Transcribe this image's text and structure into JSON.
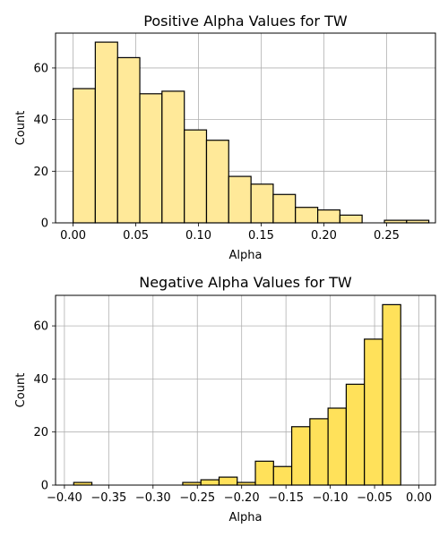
{
  "chart_data": [
    {
      "type": "bar",
      "title": "Positive Alpha Values for TW",
      "xlabel": "Alpha",
      "ylabel": "Count",
      "xlim": [
        -0.014,
        0.289
      ],
      "ylim": [
        0,
        73.5
      ],
      "grid": true,
      "bar_color": "#FFE999",
      "edge_color": "#000000",
      "xticks": [
        {
          "value": 0.0,
          "label": "0.00"
        },
        {
          "value": 0.05,
          "label": "0.05"
        },
        {
          "value": 0.1,
          "label": "0.10"
        },
        {
          "value": 0.15,
          "label": "0.15"
        },
        {
          "value": 0.2,
          "label": "0.20"
        },
        {
          "value": 0.25,
          "label": "0.25"
        }
      ],
      "yticks": [
        {
          "value": 0,
          "label": "0"
        },
        {
          "value": 20,
          "label": "20"
        },
        {
          "value": 40,
          "label": "40"
        },
        {
          "value": 60,
          "label": "60"
        }
      ],
      "bins": [
        {
          "x0": 0.0,
          "x1": 0.0177,
          "count": 52
        },
        {
          "x0": 0.0177,
          "x1": 0.0355,
          "count": 70
        },
        {
          "x0": 0.0355,
          "x1": 0.0532,
          "count": 64
        },
        {
          "x0": 0.0532,
          "x1": 0.0709,
          "count": 50
        },
        {
          "x0": 0.0709,
          "x1": 0.0887,
          "count": 51
        },
        {
          "x0": 0.0887,
          "x1": 0.1064,
          "count": 36
        },
        {
          "x0": 0.1064,
          "x1": 0.1241,
          "count": 32
        },
        {
          "x0": 0.1241,
          "x1": 0.1419,
          "count": 18
        },
        {
          "x0": 0.1419,
          "x1": 0.1596,
          "count": 15
        },
        {
          "x0": 0.1596,
          "x1": 0.1773,
          "count": 11
        },
        {
          "x0": 0.1773,
          "x1": 0.1951,
          "count": 6
        },
        {
          "x0": 0.1951,
          "x1": 0.2128,
          "count": 5
        },
        {
          "x0": 0.2128,
          "x1": 0.2305,
          "count": 3
        },
        {
          "x0": 0.2305,
          "x1": 0.2483,
          "count": 0
        },
        {
          "x0": 0.2483,
          "x1": 0.266,
          "count": 1
        },
        {
          "x0": 0.266,
          "x1": 0.2837,
          "count": 1
        }
      ]
    },
    {
      "type": "bar",
      "title": "Negative Alpha Values for TW",
      "xlabel": "Alpha",
      "ylabel": "Count",
      "xlim": [
        -0.41,
        0.0187
      ],
      "ylim": [
        0,
        71.5
      ],
      "grid": true,
      "bar_color": "#FFE15A",
      "edge_color": "#000000",
      "xticks": [
        {
          "value": -0.4,
          "label": "−0.40"
        },
        {
          "value": -0.35,
          "label": "−0.35"
        },
        {
          "value": -0.3,
          "label": "−0.30"
        },
        {
          "value": -0.25,
          "label": "−0.25"
        },
        {
          "value": -0.2,
          "label": "−0.20"
        },
        {
          "value": -0.15,
          "label": "−0.15"
        },
        {
          "value": -0.1,
          "label": "−0.10"
        },
        {
          "value": -0.05,
          "label": "−0.05"
        },
        {
          "value": 0.0,
          "label": "0.00"
        }
      ],
      "yticks": [
        {
          "value": 0,
          "label": "0"
        },
        {
          "value": 20,
          "label": "20"
        },
        {
          "value": 40,
          "label": "40"
        },
        {
          "value": 60,
          "label": "60"
        }
      ],
      "bins": [
        {
          "x0": -0.3895,
          "x1": -0.369,
          "count": 1
        },
        {
          "x0": -0.369,
          "x1": -0.3485,
          "count": 0
        },
        {
          "x0": -0.3485,
          "x1": -0.328,
          "count": 0
        },
        {
          "x0": -0.328,
          "x1": -0.3075,
          "count": 0
        },
        {
          "x0": -0.3075,
          "x1": -0.287,
          "count": 0
        },
        {
          "x0": -0.287,
          "x1": -0.2665,
          "count": 0
        },
        {
          "x0": -0.2665,
          "x1": -0.246,
          "count": 1
        },
        {
          "x0": -0.246,
          "x1": -0.2255,
          "count": 2
        },
        {
          "x0": -0.2255,
          "x1": -0.205,
          "count": 3
        },
        {
          "x0": -0.205,
          "x1": -0.1845,
          "count": 1
        },
        {
          "x0": -0.1845,
          "x1": -0.164,
          "count": 9
        },
        {
          "x0": -0.164,
          "x1": -0.1435,
          "count": 7
        },
        {
          "x0": -0.1435,
          "x1": -0.123,
          "count": 22
        },
        {
          "x0": -0.123,
          "x1": -0.1025,
          "count": 25
        },
        {
          "x0": -0.1025,
          "x1": -0.082,
          "count": 29
        },
        {
          "x0": -0.082,
          "x1": -0.0615,
          "count": 38
        },
        {
          "x0": -0.0615,
          "x1": -0.041,
          "count": 55
        },
        {
          "x0": -0.041,
          "x1": -0.0205,
          "count": 68
        }
      ]
    }
  ]
}
